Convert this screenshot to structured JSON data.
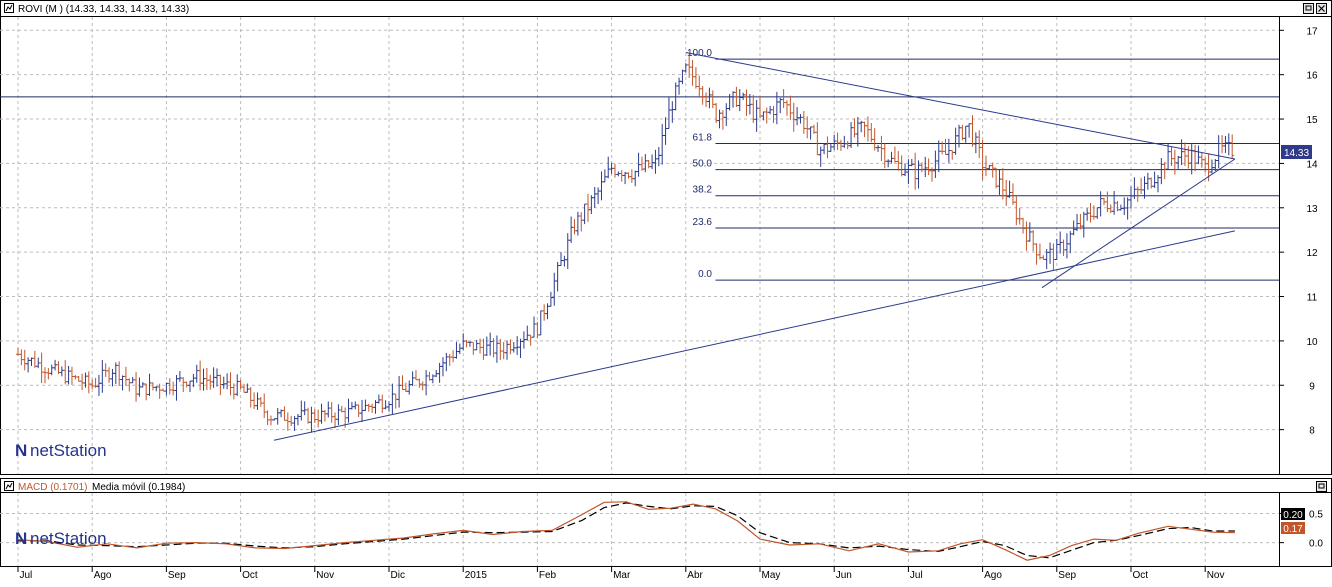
{
  "price_panel": {
    "title": "ROVI (M ) (14.33, 14.33, 14.33, 14.33)",
    "last_price_badge": "14.33",
    "logo": "netStation"
  },
  "macd_panel": {
    "title_macd": "MACD (0.1701)",
    "title_signal": "Media móvil (0.1984)",
    "badge_top": "0.20",
    "badge_bottom": "0.17",
    "logo": "netStation"
  },
  "colors": {
    "frame": "#000000",
    "grid": "#bcbcbc",
    "up": "#2b3a8c",
    "down": "#c0562a",
    "trendline": "#2b3a8c",
    "fib_line": "#1f2a6b",
    "macd": "#c0562a",
    "signal": "#000000",
    "badge_bg": "#2f3a8a",
    "badge_signal_bg": "#000000",
    "badge_macd_bg": "#c0562a",
    "logo": "#26328c"
  },
  "icons": [
    "chart-icon",
    "restore-icon",
    "close-icon"
  ],
  "chart_data": [
    {
      "type": "ohlc",
      "symbol": "ROVI",
      "xlabels": [
        "Jul",
        "Ago",
        "Sep",
        "Oct",
        "Nov",
        "Dic",
        "2015",
        "Feb",
        "Mar",
        "Abr",
        "May",
        "Jun",
        "Jul",
        "Ago",
        "Sep",
        "Oct",
        "Nov"
      ],
      "ylim": [
        7,
        17.3
      ],
      "yticks": [
        8,
        9,
        10,
        11,
        12,
        13,
        14,
        15,
        16,
        17
      ],
      "grid": true,
      "price_path": [
        {
          "m": 0.0,
          "p": 9.7
        },
        {
          "m": 0.5,
          "p": 9.3
        },
        {
          "m": 1.0,
          "p": 9.0
        },
        {
          "m": 1.3,
          "p": 9.4
        },
        {
          "m": 1.6,
          "p": 8.9
        },
        {
          "m": 2.0,
          "p": 9.0
        },
        {
          "m": 2.4,
          "p": 9.2
        },
        {
          "m": 3.0,
          "p": 8.9
        },
        {
          "m": 3.4,
          "p": 8.3
        },
        {
          "m": 4.0,
          "p": 8.3
        },
        {
          "m": 4.5,
          "p": 8.4
        },
        {
          "m": 5.0,
          "p": 8.7
        },
        {
          "m": 5.5,
          "p": 9.2
        },
        {
          "m": 6.0,
          "p": 9.9
        },
        {
          "m": 6.5,
          "p": 9.8
        },
        {
          "m": 7.0,
          "p": 10.3
        },
        {
          "m": 7.2,
          "p": 11.2
        },
        {
          "m": 7.5,
          "p": 12.6
        },
        {
          "m": 7.8,
          "p": 13.3
        },
        {
          "m": 8.0,
          "p": 13.9
        },
        {
          "m": 8.3,
          "p": 13.8
        },
        {
          "m": 8.6,
          "p": 14.0
        },
        {
          "m": 8.8,
          "p": 15.3
        },
        {
          "m": 9.0,
          "p": 16.1
        },
        {
          "m": 9.2,
          "p": 15.8
        },
        {
          "m": 9.4,
          "p": 15.1
        },
        {
          "m": 9.7,
          "p": 15.5
        },
        {
          "m": 10.0,
          "p": 15.0
        },
        {
          "m": 10.3,
          "p": 15.4
        },
        {
          "m": 10.6,
          "p": 14.9
        },
        {
          "m": 10.8,
          "p": 14.3
        },
        {
          "m": 11.0,
          "p": 14.4
        },
        {
          "m": 11.4,
          "p": 14.8
        },
        {
          "m": 11.8,
          "p": 14.0
        },
        {
          "m": 12.1,
          "p": 13.8
        },
        {
          "m": 12.5,
          "p": 14.2
        },
        {
          "m": 12.8,
          "p": 14.9
        },
        {
          "m": 13.0,
          "p": 14.0
        },
        {
          "m": 13.3,
          "p": 13.4
        },
        {
          "m": 13.6,
          "p": 12.4
        },
        {
          "m": 13.8,
          "p": 11.9
        },
        {
          "m": 14.0,
          "p": 12.0
        },
        {
          "m": 14.3,
          "p": 12.6
        },
        {
          "m": 14.6,
          "p": 13.1
        },
        {
          "m": 14.9,
          "p": 13.1
        },
        {
          "m": 15.2,
          "p": 13.5
        },
        {
          "m": 15.5,
          "p": 14.1
        },
        {
          "m": 15.8,
          "p": 14.2
        },
        {
          "m": 16.0,
          "p": 13.9
        },
        {
          "m": 16.2,
          "p": 14.3
        },
        {
          "m": 16.4,
          "p": 14.3
        }
      ],
      "fibonacci": {
        "low": 11.37,
        "high": 16.35,
        "levels": [
          {
            "label": "100.0",
            "ratio": 1.0
          },
          {
            "label": "61.8",
            "ratio": 0.618
          },
          {
            "label": "50.0",
            "ratio": 0.5
          },
          {
            "label": "38.2",
            "ratio": 0.382
          },
          {
            "label": "23.6",
            "ratio": 0.236
          },
          {
            "label": "0.0",
            "ratio": 0.0
          }
        ]
      },
      "horizontal_lines": [
        15.5
      ],
      "trendlines": [
        {
          "from": {
            "m": 3.45,
            "p": 7.76
          },
          "to": {
            "m": 16.4,
            "p": 12.48
          }
        },
        {
          "from": {
            "m": 9.0,
            "p": 16.5
          },
          "to": {
            "m": 16.4,
            "p": 14.1
          }
        },
        {
          "from": {
            "m": 13.8,
            "p": 11.2
          },
          "to": {
            "m": 16.4,
            "p": 14.1
          }
        }
      ],
      "last_price": 14.33
    },
    {
      "type": "line",
      "name": "MACD",
      "ylim": [
        -0.4,
        0.85
      ],
      "yticks": [
        0.0,
        0.5
      ],
      "series": [
        {
          "name": "MACD (0.1701)",
          "points": [
            {
              "m": 0.0,
              "v": 0.05
            },
            {
              "m": 0.4,
              "v": 0.02
            },
            {
              "m": 0.8,
              "v": -0.08
            },
            {
              "m": 1.2,
              "v": -0.02
            },
            {
              "m": 1.6,
              "v": -0.09
            },
            {
              "m": 2.0,
              "v": -0.01
            },
            {
              "m": 2.4,
              "v": 0.0
            },
            {
              "m": 2.8,
              "v": -0.02
            },
            {
              "m": 3.2,
              "v": -0.09
            },
            {
              "m": 3.6,
              "v": -0.1
            },
            {
              "m": 4.0,
              "v": -0.05
            },
            {
              "m": 4.4,
              "v": 0.0
            },
            {
              "m": 4.8,
              "v": 0.04
            },
            {
              "m": 5.2,
              "v": 0.08
            },
            {
              "m": 5.6,
              "v": 0.15
            },
            {
              "m": 6.0,
              "v": 0.21
            },
            {
              "m": 6.4,
              "v": 0.14
            },
            {
              "m": 6.8,
              "v": 0.19
            },
            {
              "m": 7.2,
              "v": 0.21
            },
            {
              "m": 7.6,
              "v": 0.48
            },
            {
              "m": 7.9,
              "v": 0.69
            },
            {
              "m": 8.2,
              "v": 0.7
            },
            {
              "m": 8.5,
              "v": 0.57
            },
            {
              "m": 8.8,
              "v": 0.59
            },
            {
              "m": 9.1,
              "v": 0.66
            },
            {
              "m": 9.4,
              "v": 0.58
            },
            {
              "m": 9.7,
              "v": 0.37
            },
            {
              "m": 10.0,
              "v": 0.06
            },
            {
              "m": 10.4,
              "v": -0.04
            },
            {
              "m": 10.8,
              "v": -0.02
            },
            {
              "m": 11.2,
              "v": -0.14
            },
            {
              "m": 11.6,
              "v": -0.02
            },
            {
              "m": 12.0,
              "v": -0.16
            },
            {
              "m": 12.4,
              "v": -0.14
            },
            {
              "m": 12.7,
              "v": -0.02
            },
            {
              "m": 13.0,
              "v": 0.05
            },
            {
              "m": 13.3,
              "v": -0.12
            },
            {
              "m": 13.6,
              "v": -0.3
            },
            {
              "m": 13.9,
              "v": -0.22
            },
            {
              "m": 14.2,
              "v": -0.05
            },
            {
              "m": 14.5,
              "v": 0.06
            },
            {
              "m": 14.8,
              "v": 0.04
            },
            {
              "m": 15.1,
              "v": 0.16
            },
            {
              "m": 15.5,
              "v": 0.28
            },
            {
              "m": 15.8,
              "v": 0.23
            },
            {
              "m": 16.1,
              "v": 0.18
            },
            {
              "m": 16.4,
              "v": 0.17
            }
          ]
        },
        {
          "name": "Media móvil (0.1984)",
          "points": [
            {
              "m": 0.0,
              "v": 0.03
            },
            {
              "m": 0.4,
              "v": 0.03
            },
            {
              "m": 0.8,
              "v": -0.04
            },
            {
              "m": 1.2,
              "v": -0.05
            },
            {
              "m": 1.6,
              "v": -0.07
            },
            {
              "m": 2.0,
              "v": -0.04
            },
            {
              "m": 2.4,
              "v": -0.01
            },
            {
              "m": 2.8,
              "v": -0.01
            },
            {
              "m": 3.2,
              "v": -0.06
            },
            {
              "m": 3.6,
              "v": -0.09
            },
            {
              "m": 4.0,
              "v": -0.07
            },
            {
              "m": 4.4,
              "v": -0.02
            },
            {
              "m": 4.8,
              "v": 0.02
            },
            {
              "m": 5.2,
              "v": 0.06
            },
            {
              "m": 5.6,
              "v": 0.12
            },
            {
              "m": 6.0,
              "v": 0.18
            },
            {
              "m": 6.4,
              "v": 0.17
            },
            {
              "m": 6.8,
              "v": 0.18
            },
            {
              "m": 7.2,
              "v": 0.19
            },
            {
              "m": 7.6,
              "v": 0.38
            },
            {
              "m": 7.9,
              "v": 0.6
            },
            {
              "m": 8.2,
              "v": 0.68
            },
            {
              "m": 8.5,
              "v": 0.62
            },
            {
              "m": 8.8,
              "v": 0.58
            },
            {
              "m": 9.1,
              "v": 0.63
            },
            {
              "m": 9.4,
              "v": 0.62
            },
            {
              "m": 9.7,
              "v": 0.46
            },
            {
              "m": 10.0,
              "v": 0.17
            },
            {
              "m": 10.4,
              "v": 0.0
            },
            {
              "m": 10.8,
              "v": -0.02
            },
            {
              "m": 11.2,
              "v": -0.09
            },
            {
              "m": 11.6,
              "v": -0.06
            },
            {
              "m": 12.0,
              "v": -0.12
            },
            {
              "m": 12.4,
              "v": -0.15
            },
            {
              "m": 12.7,
              "v": -0.07
            },
            {
              "m": 13.0,
              "v": 0.02
            },
            {
              "m": 13.3,
              "v": -0.05
            },
            {
              "m": 13.6,
              "v": -0.22
            },
            {
              "m": 13.9,
              "v": -0.26
            },
            {
              "m": 14.2,
              "v": -0.13
            },
            {
              "m": 14.5,
              "v": 0.0
            },
            {
              "m": 14.8,
              "v": 0.04
            },
            {
              "m": 15.1,
              "v": 0.12
            },
            {
              "m": 15.5,
              "v": 0.24
            },
            {
              "m": 15.8,
              "v": 0.26
            },
            {
              "m": 16.1,
              "v": 0.2
            },
            {
              "m": 16.4,
              "v": 0.2
            }
          ]
        }
      ]
    }
  ]
}
